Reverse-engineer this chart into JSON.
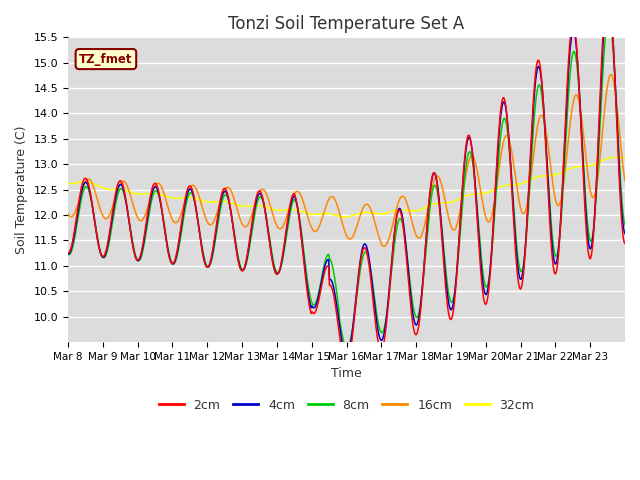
{
  "title": "Tonzi Soil Temperature Set A",
  "xlabel": "Time",
  "ylabel": "Soil Temperature (C)",
  "ylim": [
    9.5,
    15.5
  ],
  "yticks": [
    10.0,
    10.5,
    11.0,
    11.5,
    12.0,
    12.5,
    13.0,
    13.5,
    14.0,
    14.5,
    15.0,
    15.5
  ],
  "line_colors": {
    "2cm": "#ff0000",
    "4cm": "#0000cc",
    "8cm": "#00cc00",
    "16cm": "#ff8800",
    "32cm": "#ffff00"
  },
  "legend_labels": [
    "2cm",
    "4cm",
    "8cm",
    "16cm",
    "32cm"
  ],
  "annotation_text": "TZ_fmet",
  "annotation_bg": "#ffffcc",
  "annotation_border": "#880000",
  "plot_bg_color": "#dcdcdc",
  "fig_bg_color": "#ffffff",
  "grid_color": "#ffffff",
  "xtick_labels": [
    "Mar 8",
    "Mar 9",
    "Mar 10",
    "Mar 11",
    "Mar 12",
    "Mar 13",
    "Mar 14",
    "Mar 15",
    "Mar 16",
    "Mar 17",
    "Mar 18",
    "Mar 19",
    "Mar 20",
    "Mar 21",
    "Mar 22",
    "Mar 23"
  ],
  "n_days": 16,
  "points_per_day": 48
}
